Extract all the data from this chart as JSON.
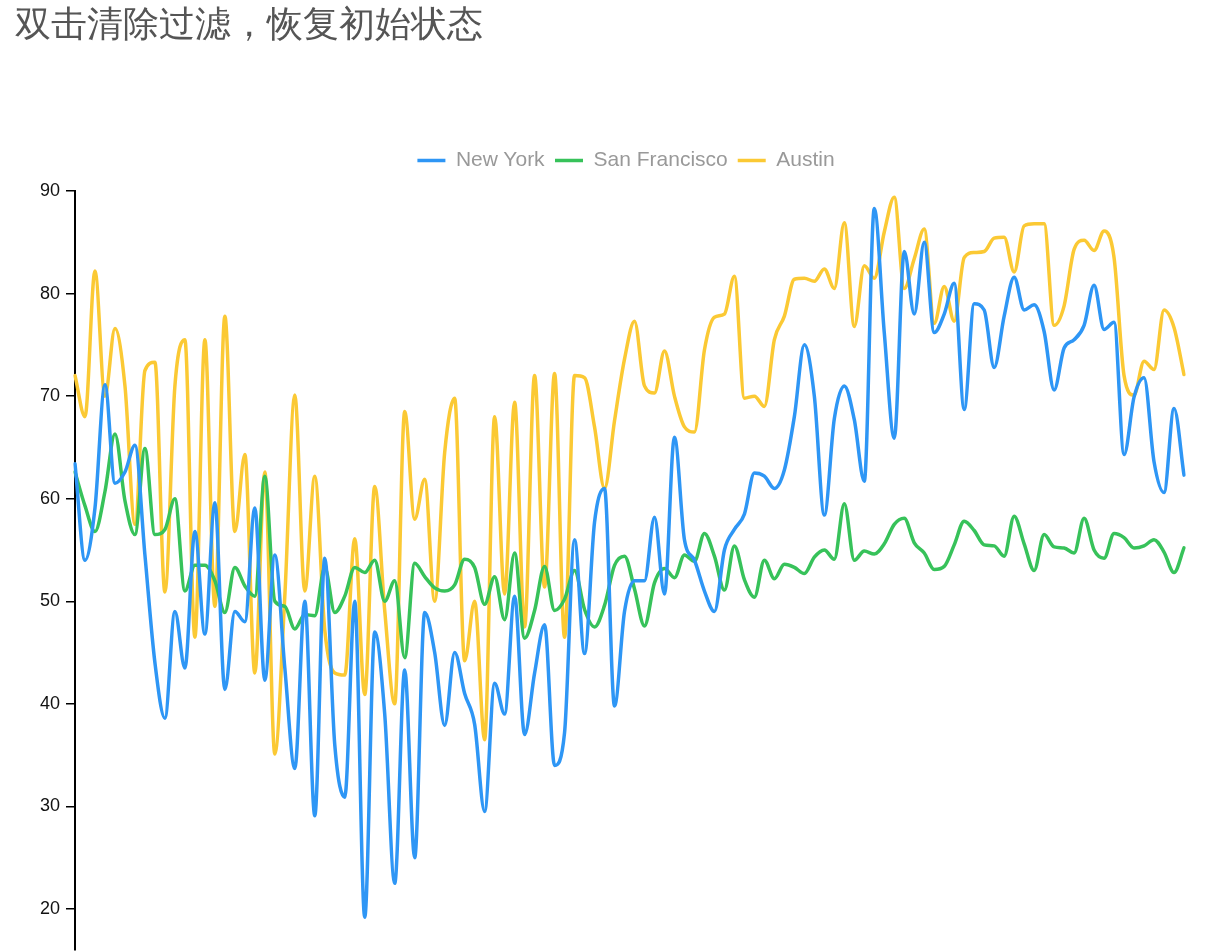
{
  "chart_data": {
    "type": "line",
    "title": "双击清除过滤，恢复初始状态",
    "categories": [
      null,
      null,
      null,
      null,
      null,
      null,
      null,
      null,
      null,
      null,
      null,
      null,
      null,
      null,
      null,
      null,
      null,
      null,
      null,
      null,
      null,
      null,
      null,
      null,
      null,
      null,
      null,
      null,
      null,
      null,
      null,
      null,
      null,
      null,
      null,
      null,
      null,
      null,
      null,
      null,
      null,
      null,
      null,
      null,
      null,
      null,
      null,
      null,
      null,
      null,
      null,
      null,
      null,
      null,
      null,
      null,
      null,
      null,
      null,
      null,
      null,
      null,
      null,
      null,
      null,
      null,
      null,
      null,
      null,
      null,
      null,
      null,
      null,
      null,
      null,
      null,
      null,
      null,
      null,
      null,
      null,
      null,
      null,
      null,
      null,
      null,
      null,
      null,
      null,
      null,
      null,
      null,
      null,
      null,
      null,
      null,
      null,
      null,
      null,
      null,
      null,
      null,
      null,
      null,
      null,
      null,
      null,
      null,
      null,
      null,
      null,
      null
    ],
    "series": [
      {
        "name": "New York",
        "color": "#2e96f5",
        "values": [
          63.4,
          54,
          59.1,
          71.1,
          61.5,
          62.6,
          65.2,
          54.5,
          44,
          38.6,
          49,
          43.5,
          56.8,
          46.8,
          59.6,
          41.4,
          49,
          48,
          59.1,
          42.3,
          54.5,
          43.5,
          33.7,
          50,
          29.1,
          54.2,
          36,
          30.9,
          50,
          19.2,
          47,
          39,
          22.5,
          43.3,
          25,
          48.9,
          45,
          37.9,
          45,
          41,
          38,
          29.5,
          42,
          39,
          50.5,
          37,
          43,
          47.7,
          34,
          37.2,
          56,
          44.9,
          57.7,
          61,
          39.8,
          49,
          52,
          52,
          58.2,
          50.7,
          66,
          56,
          54,
          51,
          49,
          55,
          57,
          58.5,
          62.5,
          62.2,
          61,
          62.8,
          68,
          75,
          70,
          58.4,
          67.8,
          71,
          67.7,
          61.7,
          88.3,
          76.2,
          65.9,
          84.1,
          78,
          85,
          76.2,
          78,
          81,
          68.7,
          79,
          78.4,
          72.8,
          77.8,
          81.6,
          78.4,
          78.9,
          76.3,
          70.6,
          74.7,
          75.5,
          76.9,
          80.8,
          76.5,
          77.2,
          64.3,
          69.9,
          71.8,
          63.6,
          60.6,
          68.8,
          62.3
        ]
      },
      {
        "name": "San Francisco",
        "color": "#37c25a",
        "values": [
          62.6,
          59.3,
          56.8,
          60.7,
          66.3,
          59.8,
          56.5,
          64.9,
          56.5,
          57,
          60,
          51,
          53.5,
          53.5,
          52,
          48.9,
          53.3,
          51.5,
          50.5,
          62.2,
          50,
          49.5,
          47.3,
          48.7,
          48.6,
          53.3,
          48.9,
          50.5,
          53.3,
          52.8,
          54,
          50,
          52,
          44.5,
          53.7,
          52.4,
          51.3,
          51,
          51.6,
          54.1,
          53.3,
          49.7,
          52.4,
          48.2,
          54.7,
          46.4,
          49.1,
          53.4,
          49.1,
          50.2,
          53,
          49.2,
          47.5,
          49.6,
          53.5,
          54.4,
          51.2,
          47.6,
          51.8,
          53.2,
          52.3,
          54.5,
          53.9,
          56.6,
          54.4,
          51.1,
          55.4,
          52.1,
          50.4,
          54,
          52.2,
          53.6,
          53.3,
          52.7,
          54.3,
          55,
          54.1,
          59.5,
          54,
          54.9,
          54.6,
          55.6,
          57.5,
          58.1,
          55.7,
          54.7,
          53.1,
          53.4,
          55.5,
          57.8,
          56.9,
          55.5,
          55.4,
          54.4,
          58.3,
          55.6,
          53,
          56.5,
          55.3,
          55.2,
          54.7,
          58.1,
          55,
          54.2,
          56.6,
          56.2,
          55.2,
          55.4,
          56,
          54.8,
          52.8,
          55.2
        ]
      },
      {
        "name": "Austin",
        "color": "#fbc934",
        "values": [
          72,
          68,
          82.2,
          70,
          76.6,
          71,
          57.5,
          72.5,
          73.3,
          50.9,
          71,
          75.5,
          46.5,
          75.5,
          49.5,
          77.8,
          56.8,
          64.3,
          43,
          62.6,
          35.1,
          50.5,
          70.1,
          51,
          62.2,
          47.2,
          43,
          42.8,
          56.1,
          40.9,
          61.2,
          49.1,
          40,
          68.5,
          58,
          61.9,
          50,
          64.5,
          69.8,
          44.2,
          50,
          36.5,
          68,
          50.7,
          69.4,
          47.5,
          72,
          51.4,
          72.2,
          46.5,
          72,
          71.8,
          67,
          61,
          67.6,
          73.6,
          77.3,
          71,
          70.3,
          74.4,
          70,
          67,
          66.5,
          74.5,
          77.7,
          78,
          81.7,
          69.8,
          70,
          69,
          75.5,
          77.8,
          81.4,
          81.5,
          81.2,
          82.4,
          80.5,
          86.9,
          76.8,
          82.7,
          81.5,
          86,
          89.4,
          80.5,
          83.4,
          86.3,
          77.1,
          80.7,
          77.3,
          83.5,
          84,
          84.1,
          85.4,
          85.5,
          82.1,
          86.6,
          86.8,
          86.8,
          76.9,
          78.8,
          84.3,
          85.2,
          84.2,
          86.1,
          83.5,
          72,
          70.1,
          73.4,
          72.6,
          78.4,
          76.7,
          72.1
        ]
      }
    ],
    "ylim": [
      16,
      90
    ],
    "yticks": [
      20,
      30,
      40,
      50,
      60,
      70,
      80,
      90
    ],
    "legend": "top",
    "tick_labels": "y"
  }
}
